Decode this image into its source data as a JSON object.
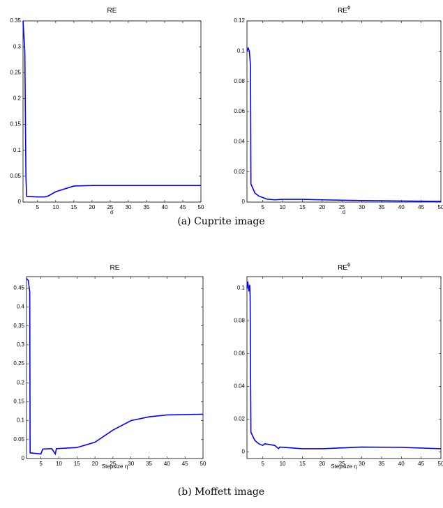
{
  "captions": [
    "(a) Cuprite image",
    "(b) Moffett image"
  ],
  "chart_data": [
    {
      "type": "line",
      "title": "RE",
      "xlabel": "σ",
      "color": "#0000ff",
      "x": [
        1,
        1.5,
        1.8,
        2,
        5,
        7,
        8,
        10,
        15,
        20,
        30,
        40,
        50
      ],
      "values": [
        0.35,
        0.29,
        0.05,
        0.011,
        0.01,
        0.01,
        0.012,
        0.02,
        0.031,
        0.032,
        0.032,
        0.032,
        0.032
      ],
      "xlim": [
        1,
        50
      ],
      "xticks": [
        5,
        10,
        15,
        20,
        25,
        30,
        35,
        40,
        45,
        50
      ],
      "ylim": [
        0,
        0.35
      ],
      "yticks": [
        0,
        0.05,
        0.1,
        0.15,
        0.2,
        0.25,
        0.3,
        0.35
      ]
    },
    {
      "type": "line",
      "title": "RE",
      "title_superscript": "ϕ",
      "xlabel": "σ",
      "color": "#0000ff",
      "x": [
        1,
        1.3,
        1.6,
        1.9,
        2,
        3,
        4,
        6,
        8,
        10,
        15,
        20,
        30,
        40,
        50
      ],
      "values": [
        0.1,
        0.102,
        0.1,
        0.09,
        0.012,
        0.006,
        0.004,
        0.002,
        0.0015,
        0.0018,
        0.0018,
        0.0015,
        0.001,
        0.0007,
        0.0005
      ],
      "xlim": [
        1,
        50
      ],
      "xticks": [
        5,
        10,
        15,
        20,
        25,
        30,
        35,
        40,
        45,
        50
      ],
      "ylim": [
        0,
        0.12
      ],
      "yticks": [
        0,
        0.02,
        0.04,
        0.06,
        0.08,
        0.1,
        0.12
      ]
    },
    {
      "type": "line",
      "title": "RE",
      "xlabel": "Stepsize η",
      "color": "#0000ff",
      "x": [
        1,
        1.5,
        1.9,
        2,
        5,
        5.5,
        8,
        9,
        9.3,
        15,
        20,
        25,
        30,
        35,
        40,
        50
      ],
      "values": [
        0.475,
        0.47,
        0.44,
        0.015,
        0.012,
        0.025,
        0.026,
        0.012,
        0.026,
        0.029,
        0.043,
        0.075,
        0.1,
        0.11,
        0.115,
        0.117
      ],
      "xlim": [
        1,
        50
      ],
      "xticks": [
        5,
        10,
        15,
        20,
        25,
        30,
        35,
        40,
        45,
        50
      ],
      "ylim": [
        0,
        0.48
      ],
      "yticks": [
        0,
        0.05,
        0.1,
        0.15,
        0.2,
        0.25,
        0.3,
        0.35,
        0.4,
        0.45
      ]
    },
    {
      "type": "line",
      "title": "RE",
      "title_superscript": "ϕ",
      "xlabel": "Stepsize η",
      "color": "#0000ff",
      "x": [
        1,
        1.2,
        1.5,
        1.7,
        1.8,
        2,
        3,
        4,
        5,
        5.5,
        8,
        9,
        9.3,
        15,
        20,
        30,
        40,
        50
      ],
      "values": [
        0.1,
        0.104,
        0.098,
        0.102,
        0.095,
        0.012,
        0.007,
        0.005,
        0.004,
        0.005,
        0.004,
        0.002,
        0.003,
        0.002,
        0.002,
        0.003,
        0.0028,
        0.002
      ],
      "xlim": [
        1,
        50
      ],
      "xticks": [
        5,
        10,
        15,
        20,
        25,
        30,
        35,
        40,
        45,
        50
      ],
      "ylim": [
        -0.004,
        0.107
      ],
      "yticks": [
        0,
        0.02,
        0.04,
        0.06,
        0.08,
        0.1
      ]
    }
  ]
}
